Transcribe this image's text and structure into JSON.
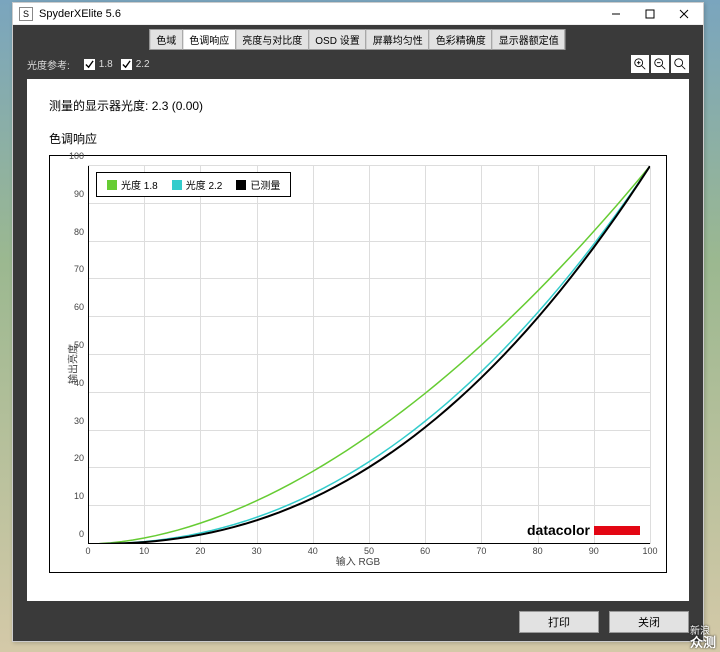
{
  "window": {
    "title": "SpyderXElite 5.6"
  },
  "tabs": {
    "items": [
      "色域",
      "色调响应",
      "亮度与对比度",
      "OSD 设置",
      "屏幕均匀性",
      "色彩精确度",
      "显示器额定值"
    ],
    "active_index": 1
  },
  "controls": {
    "ref_label": "光度参考:",
    "check_18_label": "1.8",
    "check_18_checked": true,
    "check_22_label": "2.2",
    "check_22_checked": true
  },
  "page": {
    "measured_label": "测量的显示器光度:",
    "measured_value": "2.3 (0.00)",
    "chart_title": "色调响应"
  },
  "chart": {
    "type": "line",
    "xlabel": "输入 RGB",
    "ylabel": "输出亮度",
    "xlim": [
      0,
      100
    ],
    "ylim": [
      0,
      100
    ],
    "tick_step": 10,
    "grid_color": "#dddddd",
    "axis_color": "#000000",
    "background_color": "#ffffff",
    "series": [
      {
        "name": "光度 1.8",
        "color": "#66cc33",
        "width": 1.5,
        "gamma": 1.8
      },
      {
        "name": "光度 2.2",
        "color": "#33cccc",
        "width": 1.5,
        "gamma": 2.2
      },
      {
        "name": "已测量",
        "color": "#000000",
        "width": 2.0,
        "gamma": 2.3
      }
    ],
    "legend": {
      "position": "top-left",
      "border": "#000000"
    },
    "brand": {
      "text": "datacolor",
      "color": "#333333",
      "bar_color": "#e30613"
    }
  },
  "footer": {
    "print": "打印",
    "close": "关闭"
  },
  "watermark": {
    "line1": "新浪",
    "line2": "众测"
  }
}
